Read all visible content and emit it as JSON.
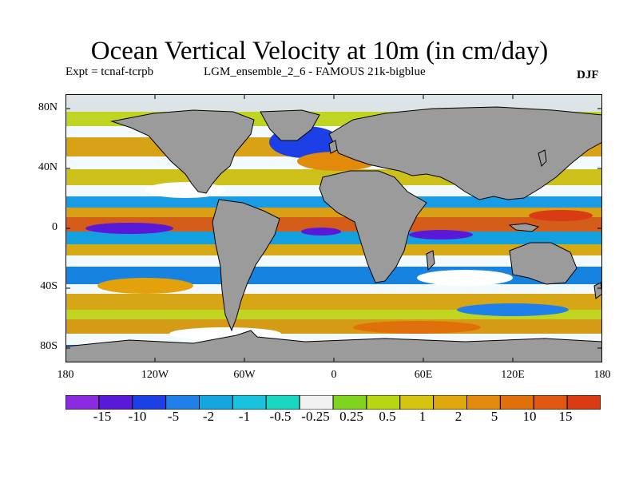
{
  "title": "Ocean Vertical Velocity at 10m (in cm/day)",
  "experiment": "Expt = tcnaf-tcrpb",
  "model": "LGM_ensemble_2_6 - FAMOUS 21k-bigblue",
  "season": "DJF",
  "lat_ticks": [
    "80N",
    "40N",
    "0",
    "40S",
    "80S"
  ],
  "lon_ticks": [
    "180",
    "120W",
    "60W",
    "0",
    "60E",
    "120E",
    "180"
  ],
  "colors": {
    "land": "#9b9b9b",
    "background": "#ffffff"
  },
  "colorbar": {
    "colors": [
      "#8a2be2",
      "#5a19d8",
      "#1c3fe6",
      "#1e80e8",
      "#14a6de",
      "#18c3de",
      "#19d8c2",
      "#f0f0f0",
      "#7fd21e",
      "#b8d712",
      "#d6c30e",
      "#e0a80c",
      "#e38a0a",
      "#e0700a",
      "#e05812",
      "#d93b12"
    ],
    "labels": [
      "-15",
      "-10",
      "-5",
      "-2",
      "-1",
      "-0.5",
      "-0.25",
      "0.25",
      "0.5",
      "1",
      "2",
      "5",
      "10",
      "15"
    ]
  }
}
